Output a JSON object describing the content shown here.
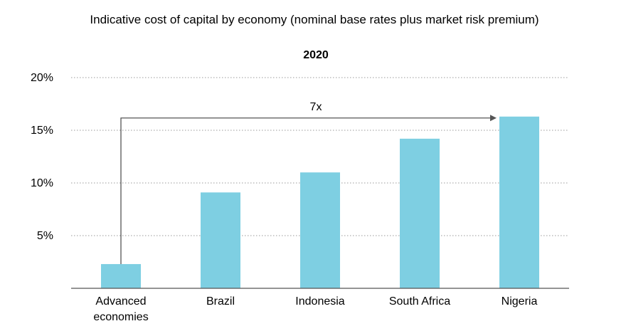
{
  "chart_data": {
    "type": "bar",
    "title": "Indicative cost of capital by economy (nominal base rates plus market risk premium)",
    "subtitle": "2020",
    "categories": [
      "Advanced economies",
      "Brazil",
      "Indonesia",
      "South Africa",
      "Nigeria"
    ],
    "category_lines": [
      [
        "Advanced",
        "economies"
      ],
      [
        "Brazil"
      ],
      [
        "Indonesia"
      ],
      [
        "South Africa"
      ],
      [
        "Nigeria"
      ]
    ],
    "values": [
      2.3,
      9.1,
      11.0,
      14.2,
      16.3
    ],
    "ylim": [
      0,
      20
    ],
    "yticks": [
      {
        "value": 5,
        "label": "5%"
      },
      {
        "value": 10,
        "label": "10%"
      },
      {
        "value": 15,
        "label": "15%"
      },
      {
        "value": 20,
        "label": "20%"
      }
    ],
    "grid": "dotted horizontal",
    "bar_color": "#7ecfe2",
    "annotation": {
      "label": "7x",
      "from_category": 0,
      "to_category": 4
    }
  }
}
